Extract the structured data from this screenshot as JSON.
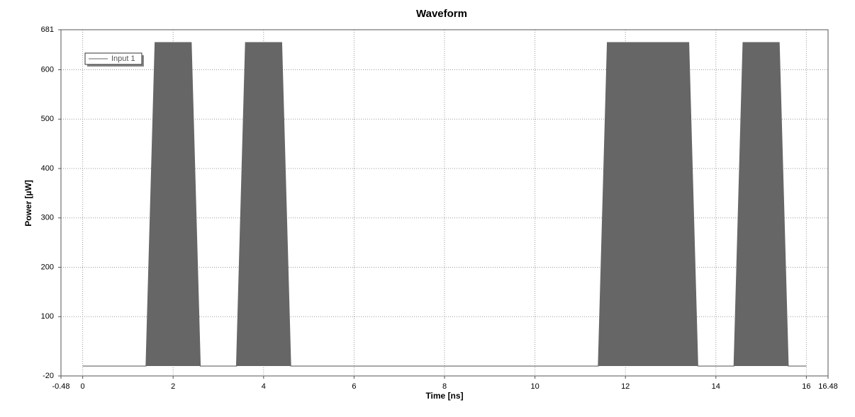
{
  "chart_data": {
    "type": "area",
    "title": "Waveform",
    "x_label": "Time [ns]",
    "y_label": "Power [µW]",
    "x": [
      0,
      1.4,
      1.6,
      2.4,
      2.6,
      3.4,
      3.6,
      4.4,
      4.6,
      11.4,
      11.6,
      13.4,
      13.6,
      14.4,
      14.6,
      15.4,
      15.6,
      16
    ],
    "series": [
      {
        "name": "Input 1",
        "color": "#666666",
        "values": [
          0,
          0,
          655,
          655,
          0,
          0,
          655,
          655,
          0,
          0,
          655,
          655,
          0,
          0,
          655,
          655,
          0,
          0
        ]
      }
    ],
    "xlim": [
      -0.48,
      16.48
    ],
    "xticks": [
      -0.48,
      0,
      2,
      4,
      6,
      8,
      10,
      12,
      14,
      16,
      16.48
    ],
    "ylim": [
      -20,
      681
    ],
    "yticks": [
      -20,
      100,
      200,
      300,
      400,
      500,
      600,
      681
    ],
    "grid": true,
    "legend": "top-left"
  }
}
